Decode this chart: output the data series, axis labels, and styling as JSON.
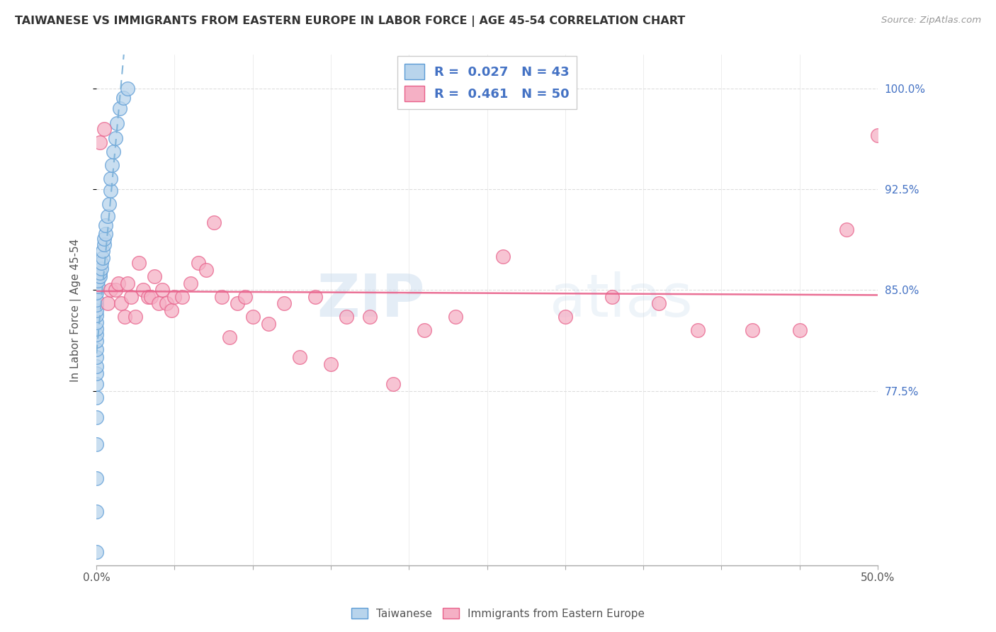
{
  "title": "TAIWANESE VS IMMIGRANTS FROM EASTERN EUROPE IN LABOR FORCE | AGE 45-54 CORRELATION CHART",
  "source": "Source: ZipAtlas.com",
  "ylabel": "In Labor Force | Age 45-54",
  "xlim": [
    0.0,
    0.5
  ],
  "ylim": [
    0.645,
    1.025
  ],
  "xticks": [
    0.0,
    0.05,
    0.1,
    0.15,
    0.2,
    0.25,
    0.3,
    0.35,
    0.4,
    0.45,
    0.5
  ],
  "yticks_right": [
    0.775,
    0.85,
    0.925,
    1.0
  ],
  "ytick_right_labels": [
    "77.5%",
    "85.0%",
    "92.5%",
    "100.0%"
  ],
  "r_taiwanese": 0.027,
  "n_taiwanese": 43,
  "r_eastern": 0.461,
  "n_eastern": 50,
  "taiwanese_color": "#b8d4ec",
  "eastern_color": "#f5b0c5",
  "taiwanese_edge_color": "#5b9bd5",
  "eastern_edge_color": "#e8608a",
  "taiwanese_line_color": "#7ab0d8",
  "eastern_line_color": "#e8608a",
  "background_color": "#ffffff",
  "grid_color": "#dddddd",
  "taiwanese_x": [
    0.0,
    0.0,
    0.0,
    0.0,
    0.0,
    0.0,
    0.0,
    0.0,
    0.0,
    0.0,
    0.0,
    0.0,
    0.0,
    0.0,
    0.0,
    0.0,
    0.0,
    0.0,
    0.0,
    0.0,
    0.001,
    0.001,
    0.002,
    0.002,
    0.003,
    0.003,
    0.004,
    0.004,
    0.005,
    0.005,
    0.006,
    0.006,
    0.007,
    0.008,
    0.009,
    0.009,
    0.01,
    0.011,
    0.012,
    0.013,
    0.015,
    0.017,
    0.02
  ],
  "taiwanese_y": [
    0.655,
    0.685,
    0.71,
    0.735,
    0.755,
    0.77,
    0.78,
    0.788,
    0.793,
    0.8,
    0.806,
    0.812,
    0.817,
    0.821,
    0.826,
    0.831,
    0.835,
    0.839,
    0.843,
    0.848,
    0.853,
    0.857,
    0.86,
    0.863,
    0.866,
    0.87,
    0.874,
    0.879,
    0.884,
    0.888,
    0.892,
    0.898,
    0.905,
    0.914,
    0.924,
    0.933,
    0.943,
    0.953,
    0.963,
    0.974,
    0.985,
    0.993,
    1.0
  ],
  "eastern_x": [
    0.002,
    0.005,
    0.007,
    0.009,
    0.012,
    0.014,
    0.016,
    0.018,
    0.02,
    0.022,
    0.025,
    0.027,
    0.03,
    0.033,
    0.035,
    0.037,
    0.04,
    0.042,
    0.045,
    0.048,
    0.05,
    0.055,
    0.06,
    0.065,
    0.07,
    0.075,
    0.08,
    0.085,
    0.09,
    0.095,
    0.1,
    0.11,
    0.12,
    0.13,
    0.14,
    0.15,
    0.16,
    0.175,
    0.19,
    0.21,
    0.23,
    0.26,
    0.3,
    0.33,
    0.36,
    0.385,
    0.42,
    0.45,
    0.48,
    0.5
  ],
  "eastern_y": [
    0.96,
    0.97,
    0.84,
    0.85,
    0.85,
    0.855,
    0.84,
    0.83,
    0.855,
    0.845,
    0.83,
    0.87,
    0.85,
    0.845,
    0.845,
    0.86,
    0.84,
    0.85,
    0.84,
    0.835,
    0.845,
    0.845,
    0.855,
    0.87,
    0.865,
    0.9,
    0.845,
    0.815,
    0.84,
    0.845,
    0.83,
    0.825,
    0.84,
    0.8,
    0.845,
    0.795,
    0.83,
    0.83,
    0.78,
    0.82,
    0.83,
    0.875,
    0.83,
    0.845,
    0.84,
    0.82,
    0.82,
    0.82,
    0.895,
    0.965
  ]
}
